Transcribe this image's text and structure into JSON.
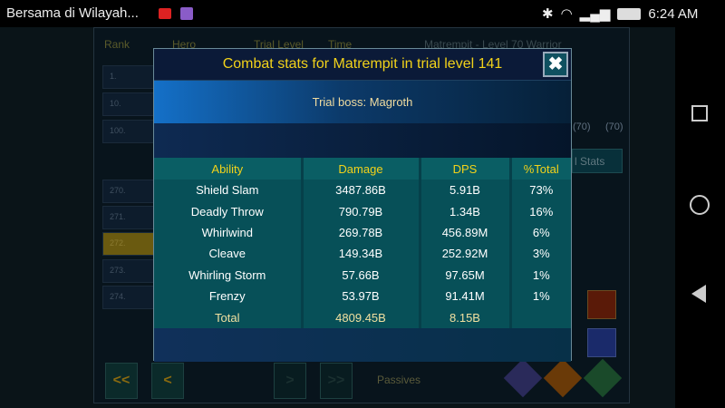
{
  "status_bar": {
    "notification": "Bersama di Wilayah...",
    "time": "6:24 AM"
  },
  "background": {
    "headers": [
      "Rank",
      "Hero",
      "Trial Level",
      "Time"
    ],
    "hero_title": "Matrempit - Level 70 Warrior",
    "ranks": [
      "1.",
      "10.",
      "100.",
      "270.",
      "271.",
      "272.",
      "273.",
      "274."
    ],
    "levels": [
      "(70)",
      "(70)"
    ],
    "stats_button": "l Stats",
    "passives": "Passives",
    "nav": [
      "<<",
      "<",
      ">",
      ">>"
    ]
  },
  "modal": {
    "title": "Combat stats for Matrempit in trial level 141",
    "boss": "Trial boss: Magroth",
    "columns": [
      "Ability",
      "Damage",
      "DPS",
      "%Total"
    ],
    "rows": [
      {
        "ability": "Shield Slam",
        "damage": "3487.86B",
        "dps": "5.91B",
        "pct": "73%"
      },
      {
        "ability": "Deadly Throw",
        "damage": "790.79B",
        "dps": "1.34B",
        "pct": "16%"
      },
      {
        "ability": "Whirlwind",
        "damage": "269.78B",
        "dps": "456.89M",
        "pct": "6%"
      },
      {
        "ability": "Cleave",
        "damage": "149.34B",
        "dps": "252.92M",
        "pct": "3%"
      },
      {
        "ability": "Whirling Storm",
        "damage": "57.66B",
        "dps": "97.65M",
        "pct": "1%"
      },
      {
        "ability": "Frenzy",
        "damage": "53.97B",
        "dps": "91.41M",
        "pct": "1%"
      }
    ],
    "total": {
      "label": "Total",
      "damage": "4809.45B",
      "dps": "8.15B"
    },
    "close_icon": "x-icon"
  }
}
